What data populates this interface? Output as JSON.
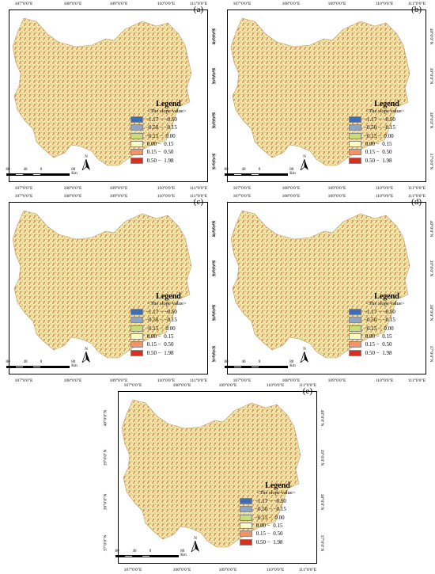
{
  "panels": [
    {
      "label": "(a)"
    },
    {
      "label": "(b)"
    },
    {
      "label": "(c)"
    },
    {
      "label": "(d)"
    },
    {
      "label": "(e)"
    }
  ],
  "axes": {
    "lon_ticks": [
      "107°0′0″E",
      "108°0′0″E",
      "109°0′0″E",
      "110°0′0″E",
      "111°0′0″E"
    ],
    "lat_ticks": [
      "40°0′0″N",
      "39°0′0″N",
      "38°0′0″N",
      "37°0′0″N"
    ]
  },
  "legend": {
    "title": "Legend",
    "subtitle": "<The slope value>",
    "items": [
      {
        "range": "−1.17 − −0.50",
        "color": "#3a6fb5"
      },
      {
        "range": "−0.50 − −0.15",
        "color": "#8fa6c2"
      },
      {
        "range": "−0.15 −  0.00",
        "color": "#c7dd7a"
      },
      {
        "range": " 0.00 −  0.15",
        "color": "#fbfbc4"
      },
      {
        "range": " 0.15 −  0.50",
        "color": "#f0946a"
      },
      {
        "range": " 0.50 −  1.98",
        "color": "#d82f1f"
      }
    ]
  },
  "scale": {
    "labels": [
      "80",
      "40",
      "0",
      "80 Km"
    ]
  },
  "north": {
    "label": "N"
  }
}
